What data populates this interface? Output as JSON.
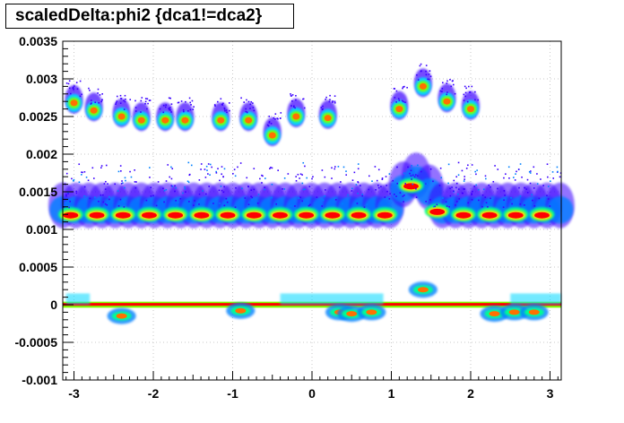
{
  "chart_data": {
    "type": "heatmap",
    "title": "scaledDelta:phi2 {dca1!=dca2}",
    "xlabel": "",
    "ylabel": "",
    "xlim": [
      -3.1416,
      3.1416
    ],
    "ylim": [
      -0.001,
      0.0035
    ],
    "grid": true,
    "x_ticks": [
      -3,
      -2,
      -1,
      0,
      1,
      2,
      3
    ],
    "x_tick_labels": [
      "-3",
      "-2",
      "-1",
      "0",
      "1",
      "2",
      "3"
    ],
    "y_ticks": [
      -0.001,
      -0.0005,
      0,
      0.0005,
      0.001,
      0.0015,
      0.002,
      0.0025,
      0.003,
      0.0035
    ],
    "y_tick_labels": [
      "-0.001",
      "-0.0005",
      "0",
      "0.0005",
      "0.001",
      "0.0015",
      "0.002",
      "0.0025",
      "0.003",
      "0.0035"
    ],
    "palette": [
      "#3a00ff",
      "#0080ff",
      "#00d8ff",
      "#00ff90",
      "#80ff00",
      "#ffe000",
      "#ff7000",
      "#ff0000"
    ],
    "bands": [
      {
        "name": "main",
        "x_start": -3.1416,
        "x_end": 3.1416,
        "y_center": 0.0012,
        "y_halfwidth": 0.00012,
        "halo_top": 0.0016,
        "halo_bottom": 0.00105
      },
      {
        "name": "zero",
        "x_start": -3.1416,
        "x_end": 3.1416,
        "y_center": 0.0,
        "y_halfwidth": 2e-05
      }
    ],
    "main_band_bump": {
      "x_start": 1.0,
      "x_end": 1.6,
      "y_peak": 0.0016
    },
    "upper_clusters": [
      {
        "x": -3.0,
        "y": 0.00268
      },
      {
        "x": -2.75,
        "y": 0.00258
      },
      {
        "x": -2.4,
        "y": 0.0025
      },
      {
        "x": -2.15,
        "y": 0.00245
      },
      {
        "x": -1.85,
        "y": 0.00245
      },
      {
        "x": -1.6,
        "y": 0.00245
      },
      {
        "x": -1.15,
        "y": 0.00245
      },
      {
        "x": -0.8,
        "y": 0.00245
      },
      {
        "x": -0.5,
        "y": 0.00225
      },
      {
        "x": -0.2,
        "y": 0.0025
      },
      {
        "x": 0.2,
        "y": 0.00248
      },
      {
        "x": 1.1,
        "y": 0.0026
      },
      {
        "x": 1.4,
        "y": 0.0029
      },
      {
        "x": 1.7,
        "y": 0.0027
      },
      {
        "x": 2.0,
        "y": 0.0026
      }
    ],
    "near_zero_clusters": [
      {
        "x": -2.4,
        "y": -0.00015
      },
      {
        "x": -0.9,
        "y": -8e-05
      },
      {
        "x": 0.35,
        "y": -0.0001
      },
      {
        "x": 0.5,
        "y": -0.00012
      },
      {
        "x": 0.75,
        "y": -0.0001
      },
      {
        "x": 1.4,
        "y": 0.0002
      },
      {
        "x": 2.3,
        "y": -0.00012
      },
      {
        "x": 2.55,
        "y": -0.0001
      },
      {
        "x": 2.8,
        "y": -0.0001
      }
    ]
  }
}
